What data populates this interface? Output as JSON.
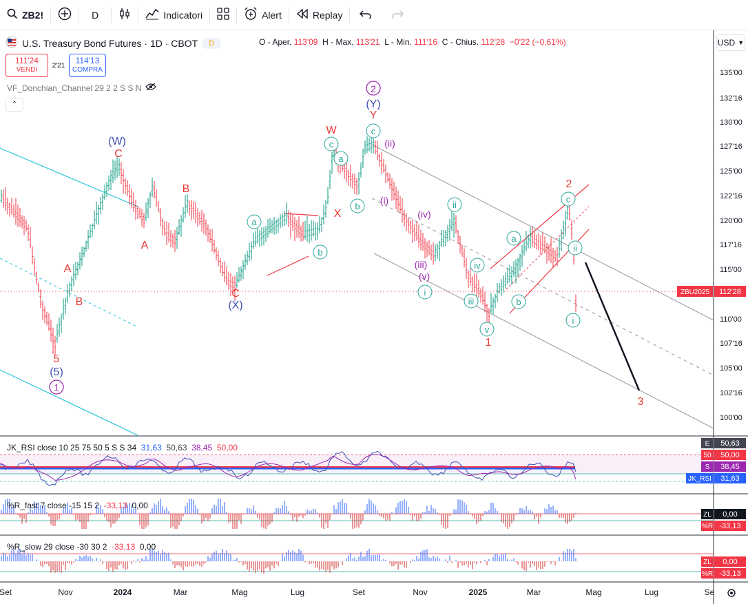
{
  "toolbar": {
    "symbol": "ZB2!",
    "interval": "D",
    "indicators_label": "Indicatori",
    "alert_label": "Alert",
    "replay_label": "Replay"
  },
  "legend": {
    "title": "U.S. Treasury Bond Futures · 1D · CBOT",
    "badge": "D",
    "open_label": "O - Aper.",
    "open": "113'09",
    "high_label": "H - Max.",
    "high": "113'21",
    "low_label": "L - Min.",
    "low": "111'16",
    "close_label": "C - Chius.",
    "close": "112'28",
    "change": "−0'22 (−0,61%)"
  },
  "trade": {
    "sell_price": "111'24",
    "sell_label": "VENDI",
    "spread": "2'21",
    "buy_price": "114'13",
    "buy_label": "COMPRA"
  },
  "indicator": {
    "name": "VF_Donchian_Channel 29 2 2 S S N"
  },
  "currency": "USD",
  "price_axis": {
    "ticks": [
      "135'00",
      "132'16",
      "130'00",
      "127'16",
      "125'00",
      "122'16",
      "120'00",
      "117'16",
      "115'00",
      "112'28",
      "110'00",
      "107'16",
      "105'00",
      "102'16",
      "100'00"
    ],
    "symbol_badge": "ZBU2025",
    "price_badge": "112'28"
  },
  "time_axis": [
    "Set",
    "Nov",
    "2024",
    "Mar",
    "Mag",
    "Lug",
    "Set",
    "Nov",
    "2025",
    "Mar",
    "Mag",
    "Lug",
    "Se"
  ],
  "waves": {
    "w1_circle": "1",
    "w2_circle": "2",
    "W_big": "(W)",
    "X_big": "(X)",
    "Y_big": "(Y)",
    "five_big": "(5)",
    "five": "5",
    "A": "A",
    "B": "B",
    "C": "C",
    "W": "W",
    "X": "X",
    "Y": "Y",
    "one": "1",
    "two": "2",
    "three": "3",
    "a": "a",
    "b": "b",
    "c": "c",
    "i": "i",
    "ii": "ii",
    "iii": "iii",
    "iv": "iv",
    "v": "v",
    "pi": "(i)",
    "pii": "(ii)",
    "piii": "(iii)",
    "piv": "(iv)",
    "pv": "(v)"
  },
  "rsi": {
    "label": "JK_RSI close 10 25 75 50 5 S S 34",
    "v1": "31,63",
    "v2": "50,63",
    "v3": "38,45",
    "v4": "50,00",
    "badges": [
      {
        "tag": "E",
        "value": "50,63",
        "color": "#434651"
      },
      {
        "tag": "50",
        "value": "50,00",
        "color": "#f23645"
      },
      {
        "tag": "S",
        "value": "38,45",
        "color": "#9c27b0"
      },
      {
        "tag": "JK_RSI",
        "value": "31,63",
        "color": "#2962ff"
      }
    ]
  },
  "rfast": {
    "label": "%R_fast 7 close -15 15 2",
    "v1": "-33,13",
    "v2": "0,00",
    "badges": [
      {
        "tag": "ZL",
        "value": "0,00",
        "color": "#131722"
      },
      {
        "tag": "%R",
        "value": "-33,13",
        "color": "#f23645"
      }
    ]
  },
  "rslow": {
    "label": "%R_slow 29 close -30 30 2",
    "v1": "-33,13",
    "v2": "0,00",
    "badges": [
      {
        "tag": "ZL",
        "value": "0,00",
        "color": "#f23645"
      },
      {
        "tag": "%R",
        "value": "-33,13",
        "color": "#f23645"
      }
    ]
  },
  "colors": {
    "up": "#089981",
    "down": "#f23645",
    "wave_red": "#e53935",
    "wave_green": "#26a69a",
    "wave_blue": "#3f51b5",
    "wave_purple": "#9c27b0"
  }
}
